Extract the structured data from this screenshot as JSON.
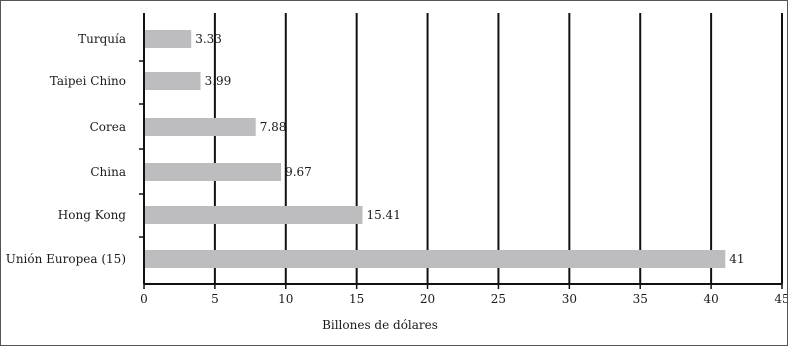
{
  "chart_data": {
    "type": "bar",
    "orientation": "horizontal",
    "categories": [
      "Turquía",
      "Taipei Chino",
      "Corea",
      "China",
      "Hong Kong",
      "Unión Europea (15)"
    ],
    "values": [
      3.33,
      3.99,
      7.88,
      9.67,
      15.41,
      41
    ],
    "value_labels": [
      "3.33",
      "3.99",
      "7.88",
      "9.67",
      "15.41",
      "41"
    ],
    "xlabel": "Billones de dólares",
    "xlim": [
      0,
      45
    ],
    "xticks": [
      0,
      5,
      10,
      15,
      20,
      25,
      30,
      35,
      40,
      45
    ],
    "grid": "vertical",
    "bar_color": "#bdbdbf",
    "grid_color": "#111111"
  }
}
